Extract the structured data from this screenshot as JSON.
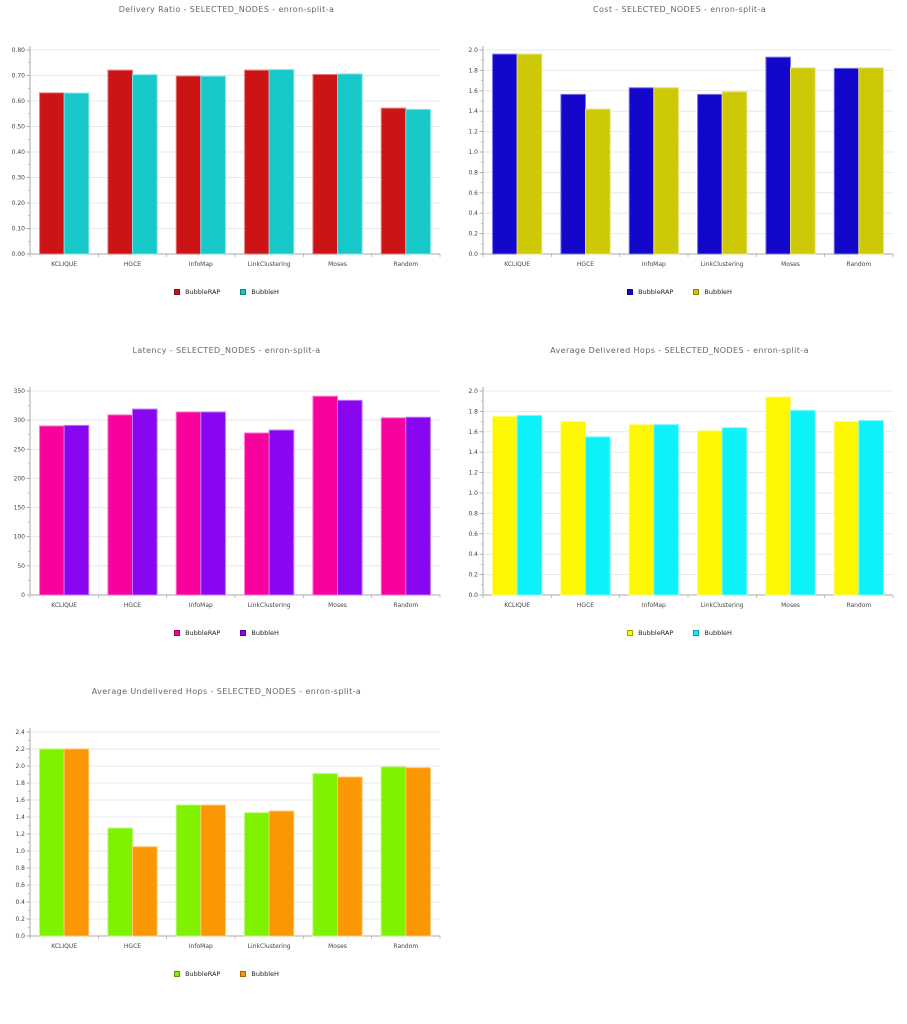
{
  "chart_data": [
    {
      "type": "bar",
      "title": "Delivery Ratio - SELECTED_NODES - enron-split-a",
      "categories": [
        "KCLIQUE",
        "HGCE",
        "InfoMap",
        "LinkClustering",
        "Moses",
        "Random"
      ],
      "series": [
        {
          "name": "BubbleRAP",
          "color": "#cc1416",
          "values": [
            0.632,
            0.721,
            0.698,
            0.721,
            0.704,
            0.572
          ]
        },
        {
          "name": "BubbleH",
          "color": "#16c8c8",
          "values": [
            0.631,
            0.703,
            0.697,
            0.723,
            0.706,
            0.567
          ]
        }
      ],
      "ylim": [
        0,
        0.8
      ],
      "ytick_step": 0.1,
      "ytick_decimals": 2,
      "grid": true,
      "legend_position": "bottom",
      "xlabel": "",
      "ylabel": ""
    },
    {
      "type": "bar",
      "title": "Cost - SELECTED_NODES - enron-split-a",
      "categories": [
        "KCLIQUE",
        "HGCE",
        "InfoMap",
        "LinkClustering",
        "Moses",
        "Random"
      ],
      "series": [
        {
          "name": "BubbleRAP",
          "color": "#1307cc",
          "values": [
            1.96,
            1.565,
            1.63,
            1.565,
            1.93,
            1.82
          ]
        },
        {
          "name": "BubbleH",
          "color": "#cdc907",
          "values": [
            1.96,
            1.42,
            1.63,
            1.59,
            1.825,
            1.825
          ]
        }
      ],
      "ylim": [
        0,
        2.0
      ],
      "ytick_step": 0.2,
      "ytick_decimals": 1,
      "grid": true,
      "legend_position": "bottom",
      "xlabel": "",
      "ylabel": ""
    },
    {
      "type": "bar",
      "title": "Latency - SELECTED_NODES - enron-split-a",
      "categories": [
        "KCLIQUE",
        "HGCE",
        "InfoMap",
        "LinkClustering",
        "Moses",
        "Random"
      ],
      "series": [
        {
          "name": "BubbleRAP",
          "color": "#f7029c",
          "values": [
            290,
            309,
            314,
            278,
            341,
            304
          ]
        },
        {
          "name": "BubbleH",
          "color": "#8807f0",
          "values": [
            291,
            319,
            314,
            283,
            334,
            305
          ]
        }
      ],
      "ylim": [
        0,
        350
      ],
      "ytick_step": 50,
      "ytick_decimals": 0,
      "grid": true,
      "legend_position": "bottom",
      "xlabel": "",
      "ylabel": ""
    },
    {
      "type": "bar",
      "title": "Average Delivered Hops - SELECTED_NODES - enron-split-a",
      "categories": [
        "KCLIQUE",
        "HGCE",
        "InfoMap",
        "LinkClustering",
        "Moses",
        "Random"
      ],
      "series": [
        {
          "name": "BubbleRAP",
          "color": "#fdf802",
          "values": [
            1.75,
            1.7,
            1.67,
            1.61,
            1.94,
            1.7
          ]
        },
        {
          "name": "BubbleH",
          "color": "#0cf2f8",
          "values": [
            1.76,
            1.55,
            1.67,
            1.64,
            1.81,
            1.71
          ]
        }
      ],
      "ylim": [
        0,
        2.0
      ],
      "ytick_step": 0.2,
      "ytick_decimals": 1,
      "grid": true,
      "legend_position": "bottom",
      "xlabel": "",
      "ylabel": ""
    },
    {
      "type": "bar",
      "title": "Average Undelivered Hops - SELECTED_NODES - enron-split-a",
      "categories": [
        "KCLIQUE",
        "HGCE",
        "InfoMap",
        "LinkClustering",
        "Moses",
        "Random"
      ],
      "series": [
        {
          "name": "BubbleRAP",
          "color": "#7ef201",
          "values": [
            2.2,
            1.27,
            1.54,
            1.45,
            1.91,
            1.99
          ]
        },
        {
          "name": "BubbleH",
          "color": "#fb9702",
          "values": [
            2.2,
            1.05,
            1.54,
            1.47,
            1.87,
            1.98
          ]
        }
      ],
      "ylim": [
        0,
        2.4
      ],
      "ytick_step": 0.2,
      "ytick_decimals": 1,
      "grid": true,
      "legend_position": "bottom",
      "xlabel": "",
      "ylabel": ""
    }
  ]
}
